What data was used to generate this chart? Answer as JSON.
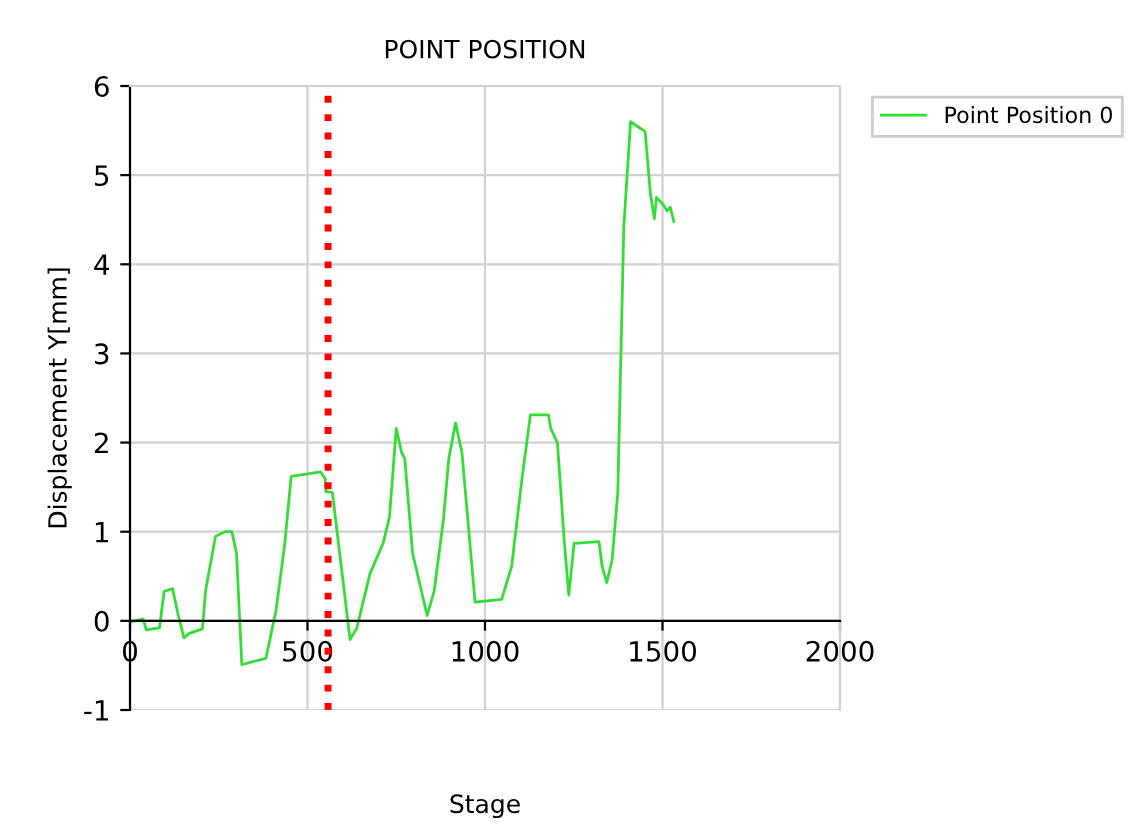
{
  "chart_data": {
    "type": "line",
    "title": "POINT POSITION",
    "xlabel": "Stage",
    "ylabel": "Displacement Y[mm]",
    "xlim": [
      0,
      2000
    ],
    "xticks": [
      0,
      500,
      1000,
      1500,
      2000
    ],
    "ylim": [
      -1,
      6
    ],
    "yticks": [
      -1,
      0,
      1,
      2,
      3,
      4,
      5,
      6
    ],
    "grid": true,
    "legend": "top right",
    "marker": "none",
    "line_style": "solid",
    "ref_lines": [
      {
        "axis": "x",
        "value": 558,
        "color": "#ff0000",
        "line_style": "dotted"
      }
    ],
    "series": [
      {
        "name": "Point Position 0",
        "color": "#33dd33",
        "x": [
          0,
          37,
          46,
          83,
          96,
          120,
          135,
          152,
          167,
          204,
          213,
          241,
          268,
          287,
          300,
          315,
          383,
          411,
          435,
          454,
          537,
          550,
          552,
          570,
          593,
          620,
          639,
          676,
          713,
          731,
          750,
          765,
          774,
          796,
          837,
          857,
          883,
          898,
          917,
          935,
          972,
          1047,
          1075,
          1104,
          1128,
          1179,
          1185,
          1204,
          1223,
          1236,
          1251,
          1321,
          1330,
          1343,
          1358,
          1374,
          1391,
          1410,
          1432,
          1451,
          1466,
          1477,
          1483,
          1500,
          1513,
          1522,
          1532
        ],
        "values": [
          -0.01,
          0.02,
          -0.1,
          -0.08,
          0.33,
          0.36,
          0.08,
          -0.19,
          -0.14,
          -0.09,
          0.34,
          0.95,
          1.0,
          1.0,
          0.76,
          -0.49,
          -0.42,
          0.11,
          0.83,
          1.62,
          1.67,
          1.59,
          1.45,
          1.44,
          0.68,
          -0.21,
          -0.08,
          0.53,
          0.87,
          1.17,
          2.16,
          1.89,
          1.82,
          0.76,
          0.06,
          0.34,
          1.14,
          1.82,
          2.22,
          1.89,
          0.21,
          0.24,
          0.61,
          1.59,
          2.31,
          2.31,
          2.16,
          2.0,
          0.91,
          0.29,
          0.87,
          0.89,
          0.61,
          0.43,
          0.68,
          1.44,
          4.42,
          5.6,
          5.54,
          5.49,
          4.79,
          4.51,
          4.75,
          4.68,
          4.6,
          4.64,
          4.48
        ]
      }
    ]
  }
}
